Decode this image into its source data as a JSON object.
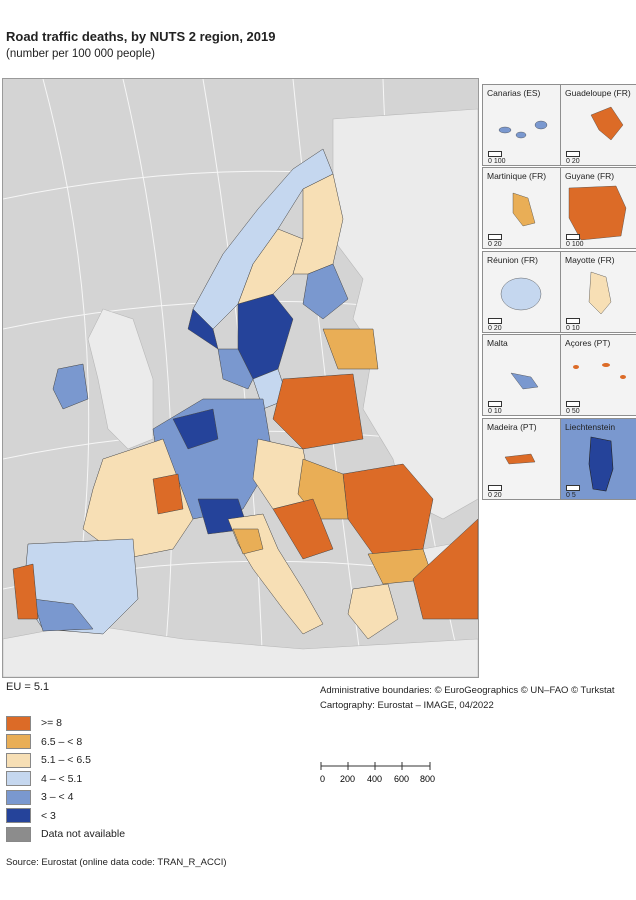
{
  "title": "Road traffic deaths, by NUTS 2 region, 2019",
  "subtitle": "(number per 100 000 people)",
  "eu_value": "EU = 5.1",
  "credits": {
    "line1": "Administrative boundaries: © EuroGeographics © UN–FAO © Turkstat",
    "line2": "Cartography: Eurostat – IMAGE, 04/2022"
  },
  "scale_bar": {
    "ticks": [
      "0",
      "200",
      "400",
      "600",
      "800 km"
    ]
  },
  "source": "Source: Eurostat (online data code: TRAN_R_ACCI)",
  "legend": [
    {
      "label": ">= 8",
      "color": "#dc6b27"
    },
    {
      "label": "6.5 – < 8",
      "color": "#e9ae56"
    },
    {
      "label": "5.1 – < 6.5",
      "color": "#f7dfb5"
    },
    {
      "label": "4 – < 5.1",
      "color": "#c5d7ef"
    },
    {
      "label": "3 – < 4",
      "color": "#7a98cf"
    },
    {
      "label": "< 3",
      "color": "#25439a"
    },
    {
      "label": "Data not available",
      "color": "#8c8c8c"
    }
  ],
  "insets": [
    {
      "label": "Canarias (ES)",
      "scale": "0  100"
    },
    {
      "label": "Guadeloupe (FR)",
      "scale": "0  20"
    },
    {
      "label": "Martinique (FR)",
      "scale": "0  20"
    },
    {
      "label": "Guyane (FR)",
      "scale": "0  100"
    },
    {
      "label": "Réunion (FR)",
      "scale": "0  20"
    },
    {
      "label": "Mayotte (FR)",
      "scale": "0  10"
    },
    {
      "label": "Malta",
      "scale": "0  10"
    },
    {
      "label": "Açores (PT)",
      "scale": "0  50"
    },
    {
      "label": "Madeira (PT)",
      "scale": "0  20"
    },
    {
      "label": "Liechtenstein",
      "scale": "0  5"
    }
  ]
}
